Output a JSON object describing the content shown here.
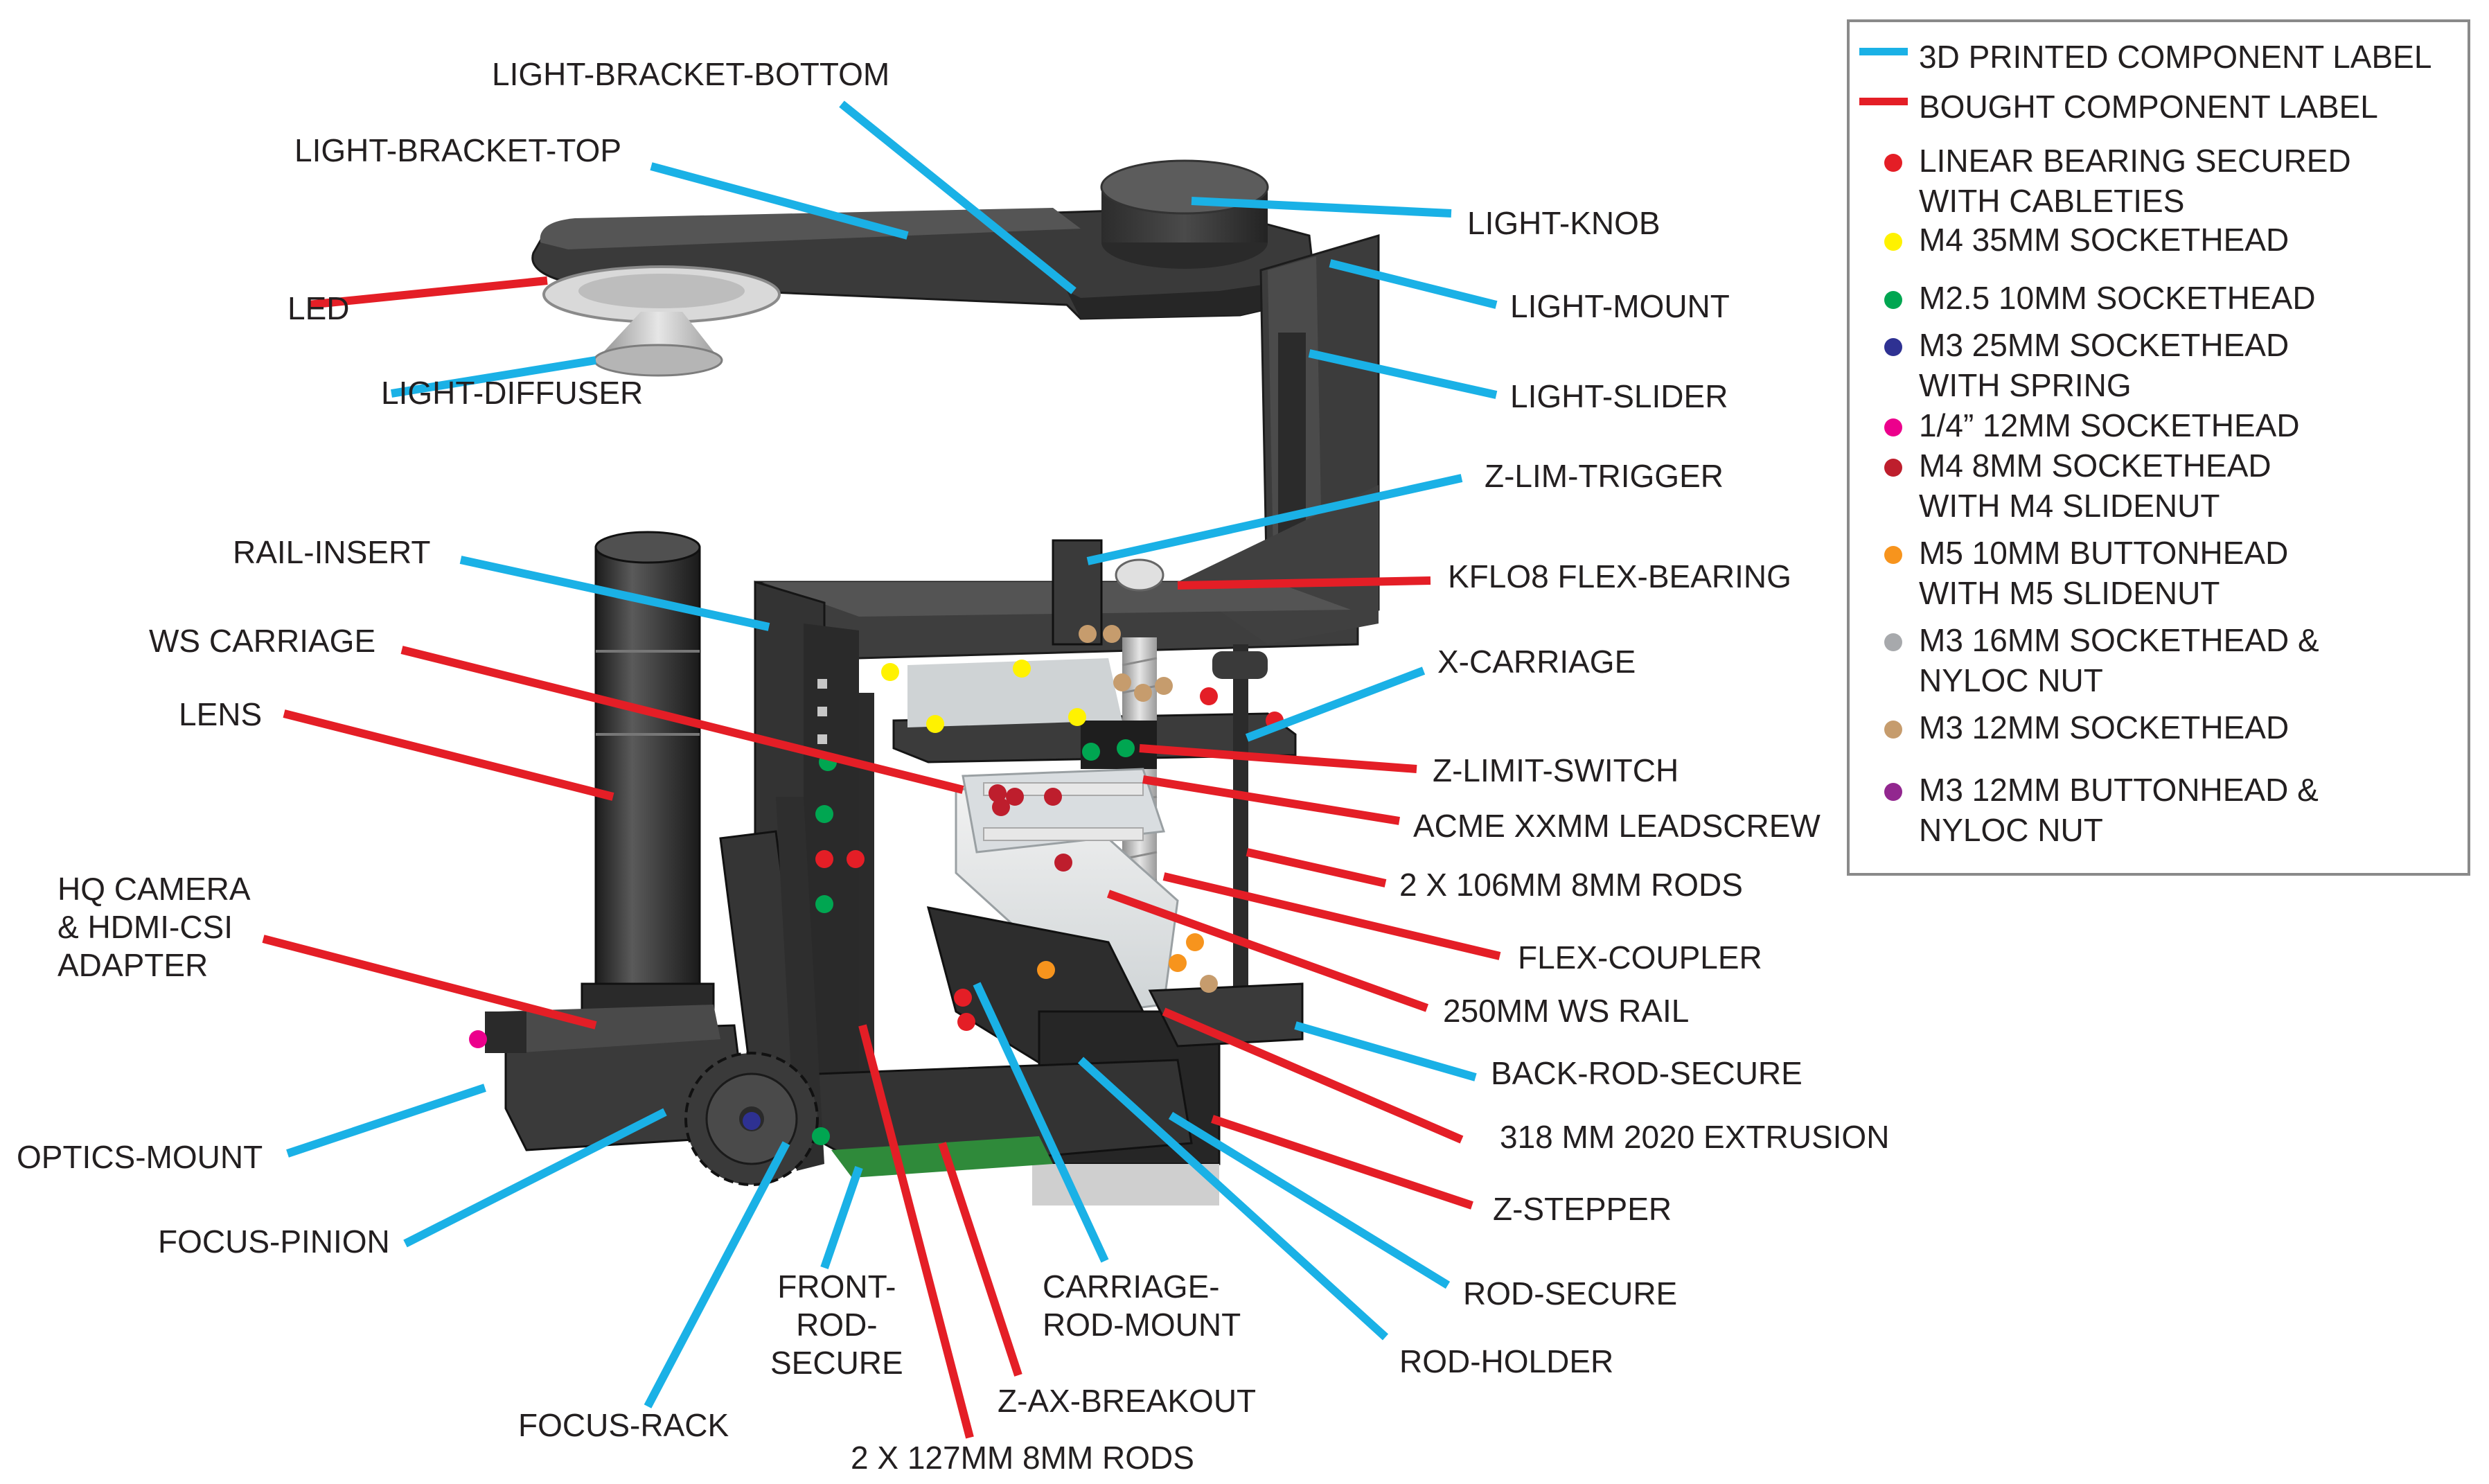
{
  "legend": {
    "printed_label": {
      "text": "3D PRINTED COMPONENT LABEL",
      "color": "#1ab1e6"
    },
    "bought_label": {
      "text": "BOUGHT COMPONENT LABEL",
      "color": "#e41e26"
    },
    "fasteners": [
      {
        "lines": [
          "LINEAR BEARING SECURED",
          "WITH CABLETIES"
        ],
        "color": "#e41e26"
      },
      {
        "lines": [
          "M4 35MM SOCKETHEAD"
        ],
        "color": "#fff200"
      },
      {
        "lines": [
          "M2.5 10MM SOCKETHEAD"
        ],
        "color": "#00a651"
      },
      {
        "lines": [
          "M3 25MM SOCKETHEAD",
          "WITH SPRING"
        ],
        "color": "#2e3192"
      },
      {
        "lines": [
          "1/4” 12MM SOCKETHEAD"
        ],
        "color": "#ec008c"
      },
      {
        "lines": [
          "M4 8MM SOCKETHEAD",
          "WITH M4 SLIDENUT"
        ],
        "color": "#be1e2d"
      },
      {
        "lines": [
          "M5 10MM BUTTONHEAD",
          "WITH M5 SLIDENUT"
        ],
        "color": "#f7941d"
      },
      {
        "lines": [
          "M3 16MM SOCKETHEAD &",
          "NYLOC NUT"
        ],
        "color": "#a7a9ac"
      },
      {
        "lines": [
          "M3 12MM SOCKETHEAD"
        ],
        "color": "#c69c6d"
      },
      {
        "lines": [
          "M3 12MM BUTTONHEAD &",
          "NYLOC NUT"
        ],
        "color": "#92278f"
      }
    ]
  },
  "callouts": [
    {
      "lines": [
        "LIGHT-BRACKET-BOTTOM"
      ],
      "kind": "printed"
    },
    {
      "lines": [
        "LIGHT-BRACKET-TOP"
      ],
      "kind": "printed"
    },
    {
      "lines": [
        "LIGHT-KNOB"
      ],
      "kind": "printed"
    },
    {
      "lines": [
        "LED"
      ],
      "kind": "bought"
    },
    {
      "lines": [
        "LIGHT-MOUNT"
      ],
      "kind": "printed"
    },
    {
      "lines": [
        "LIGHT-DIFFUSER"
      ],
      "kind": "printed"
    },
    {
      "lines": [
        "LIGHT-SLIDER"
      ],
      "kind": "printed"
    },
    {
      "lines": [
        "Z-LIM-TRIGGER"
      ],
      "kind": "printed"
    },
    {
      "lines": [
        "RAIL-INSERT"
      ],
      "kind": "printed"
    },
    {
      "lines": [
        "KFLO8 FLEX-BEARING"
      ],
      "kind": "bought"
    },
    {
      "lines": [
        "WS CARRIAGE"
      ],
      "kind": "bought"
    },
    {
      "lines": [
        "X-CARRIAGE"
      ],
      "kind": "printed"
    },
    {
      "lines": [
        "LENS"
      ],
      "kind": "bought"
    },
    {
      "lines": [
        "Z-LIMIT-SWITCH"
      ],
      "kind": "bought"
    },
    {
      "lines": [
        "ACME XXMM LEADSCREW"
      ],
      "kind": "bought"
    },
    {
      "lines": [
        "2 X 106MM 8MM RODS"
      ],
      "kind": "bought"
    },
    {
      "lines": [
        "HQ CAMERA",
        "& HDMI-CSI",
        "ADAPTER"
      ],
      "kind": "bought"
    },
    {
      "lines": [
        "FLEX-COUPLER"
      ],
      "kind": "bought"
    },
    {
      "lines": [
        "250MM WS RAIL"
      ],
      "kind": "bought"
    },
    {
      "lines": [
        "BACK-ROD-SECURE"
      ],
      "kind": "printed"
    },
    {
      "lines": [
        "318 MM 2020 EXTRUSION"
      ],
      "kind": "bought"
    },
    {
      "lines": [
        "OPTICS-MOUNT"
      ],
      "kind": "printed"
    },
    {
      "lines": [
        "Z-STEPPER"
      ],
      "kind": "bought"
    },
    {
      "lines": [
        "FOCUS-PINION"
      ],
      "kind": "printed"
    },
    {
      "lines": [
        "FRONT-",
        "ROD-",
        "SECURE"
      ],
      "kind": "printed"
    },
    {
      "lines": [
        "CARRIAGE-",
        "ROD-MOUNT"
      ],
      "kind": "printed"
    },
    {
      "lines": [
        "ROD-SECURE"
      ],
      "kind": "printed"
    },
    {
      "lines": [
        "ROD-HOLDER"
      ],
      "kind": "printed"
    },
    {
      "lines": [
        "Z-AX-BREAKOUT"
      ],
      "kind": "bought"
    },
    {
      "lines": [
        "FOCUS-RACK"
      ],
      "kind": "printed"
    },
    {
      "lines": [
        "2 X 127MM 8MM RODS"
      ],
      "kind": "bought"
    }
  ]
}
